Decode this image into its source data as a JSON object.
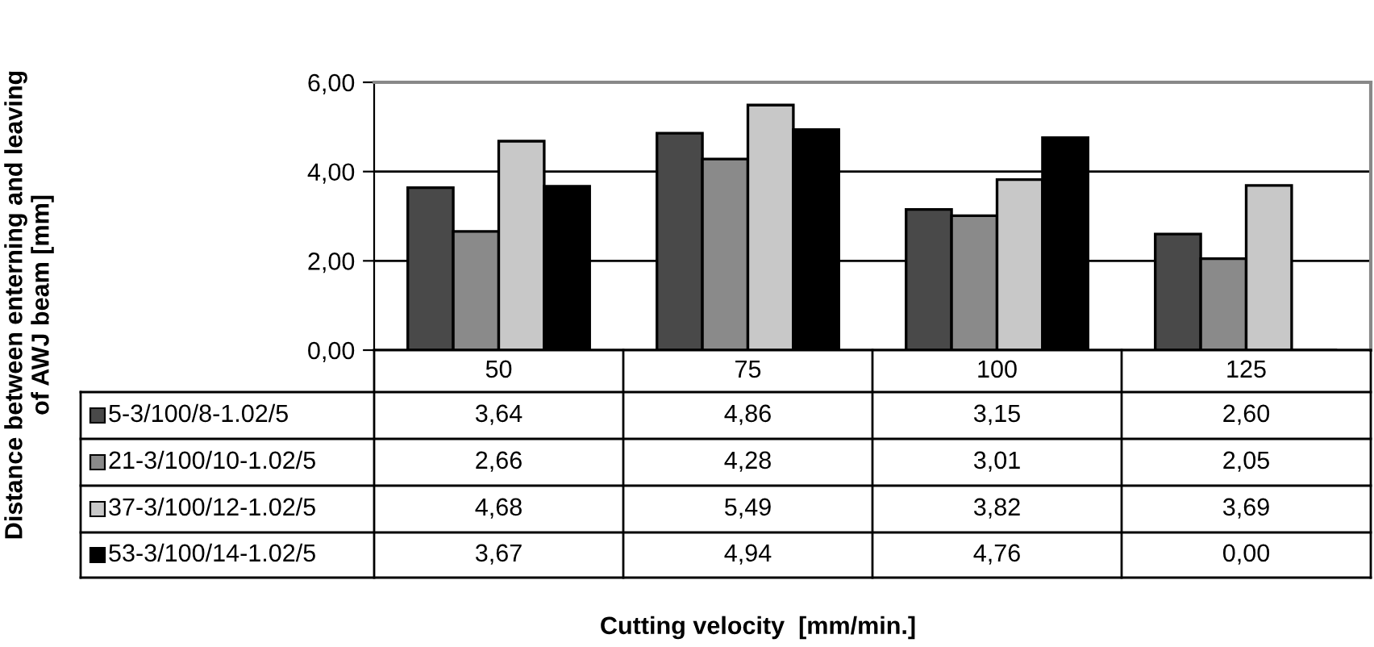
{
  "chart_data": {
    "type": "bar",
    "annotations": [
      "Distance between enterning and leaving\nof AWJ beam [mm]",
      "Cutting velocity  [mm/min.]"
    ],
    "categories": [
      "50",
      "75",
      "100",
      "125"
    ],
    "series": [
      {
        "name": "5-3/100/8-1.02/5",
        "color": "#494949",
        "values": [
          3.64,
          4.86,
          3.15,
          2.6
        ],
        "value_labels": [
          "3,64",
          "4,86",
          "3,15",
          "2,60"
        ]
      },
      {
        "name": "21-3/100/10-1.02/5",
        "color": "#8a8a8a",
        "values": [
          2.66,
          4.28,
          3.01,
          2.05
        ],
        "value_labels": [
          "2,66",
          "4,28",
          "3,01",
          "2,05"
        ]
      },
      {
        "name": "37-3/100/12-1.02/5",
        "color": "#c8c8c8",
        "values": [
          4.68,
          5.49,
          3.82,
          3.69
        ],
        "value_labels": [
          "4,68",
          "5,49",
          "3,82",
          "3,69"
        ]
      },
      {
        "name": "53-3/100/14-1.02/5",
        "color": "#000000",
        "values": [
          3.67,
          4.94,
          4.76,
          0.0
        ],
        "value_labels": [
          "3,67",
          "4,94",
          "4,76",
          "0,00"
        ]
      }
    ],
    "ylim": [
      0,
      6
    ],
    "yticks": [
      {
        "value": 0,
        "label": "0,00"
      },
      {
        "value": 2,
        "label": "2,00"
      },
      {
        "value": 4,
        "label": "4,00"
      },
      {
        "value": 6,
        "label": "6,00"
      }
    ],
    "grid": "y",
    "legend": "bottom"
  }
}
